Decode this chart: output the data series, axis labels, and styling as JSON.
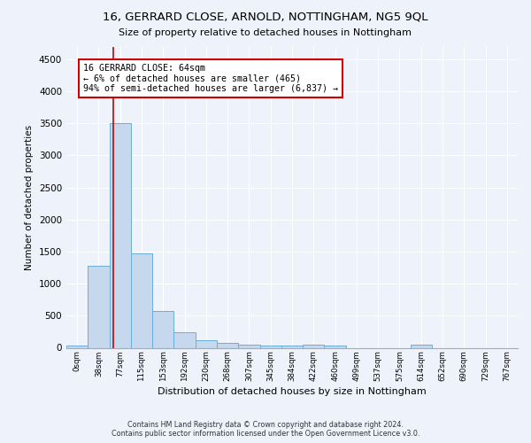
{
  "title": "16, GERRARD CLOSE, ARNOLD, NOTTINGHAM, NG5 9QL",
  "subtitle": "Size of property relative to detached houses in Nottingham",
  "xlabel": "Distribution of detached houses by size in Nottingham",
  "ylabel": "Number of detached properties",
  "bin_labels": [
    "0sqm",
    "38sqm",
    "77sqm",
    "115sqm",
    "153sqm",
    "192sqm",
    "230sqm",
    "268sqm",
    "307sqm",
    "345sqm",
    "384sqm",
    "422sqm",
    "460sqm",
    "499sqm",
    "537sqm",
    "575sqm",
    "614sqm",
    "652sqm",
    "690sqm",
    "729sqm",
    "767sqm"
  ],
  "bar_heights": [
    40,
    1280,
    3500,
    1470,
    580,
    245,
    115,
    80,
    55,
    40,
    30,
    55,
    30,
    0,
    0,
    0,
    55,
    0,
    0,
    0,
    0
  ],
  "bar_color": "#c5d8ee",
  "bar_edge_color": "#6aaed6",
  "vline_x": 1.68,
  "vline_color": "#cc0000",
  "annotation_text": "16 GERRARD CLOSE: 64sqm\n← 6% of detached houses are smaller (465)\n94% of semi-detached houses are larger (6,837) →",
  "annotation_box_color": "#cc0000",
  "ylim": [
    0,
    4700
  ],
  "yticks": [
    0,
    500,
    1000,
    1500,
    2000,
    2500,
    3000,
    3500,
    4000,
    4500
  ],
  "footer_line1": "Contains HM Land Registry data © Crown copyright and database right 2024.",
  "footer_line2": "Contains public sector information licensed under the Open Government Licence v3.0.",
  "bg_color": "#eef2fb",
  "plot_bg_color": "#eef2fb",
  "title_fontsize": 9.5,
  "subtitle_fontsize": 8.0
}
